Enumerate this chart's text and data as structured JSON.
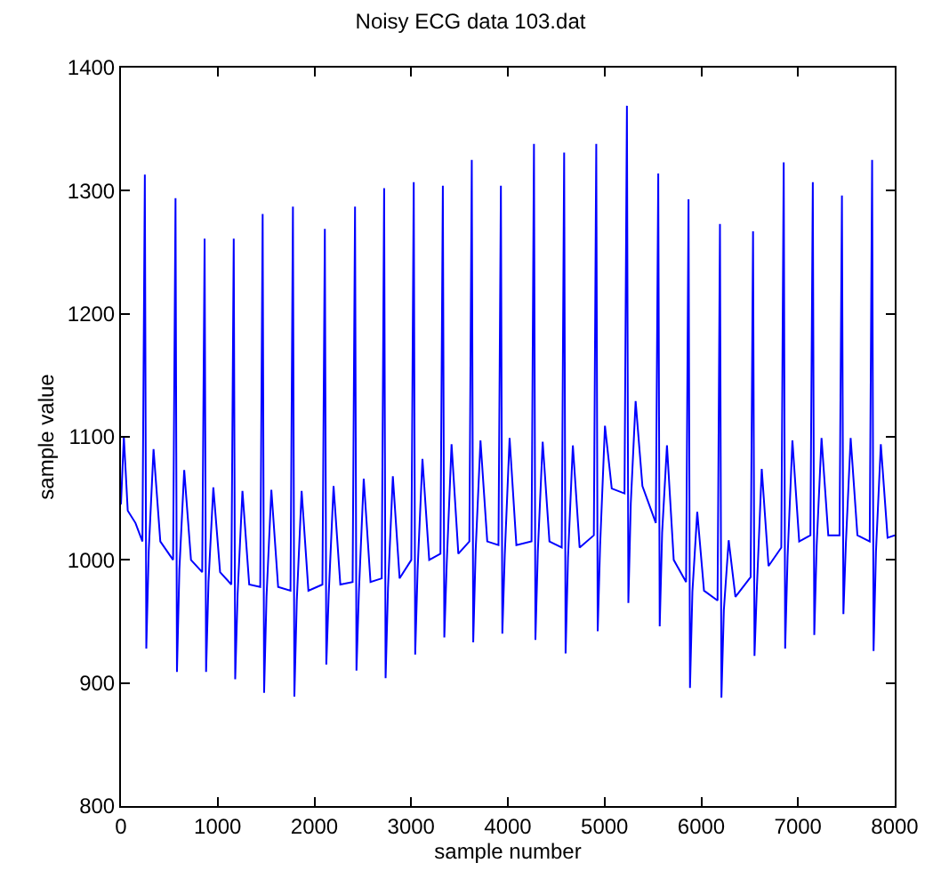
{
  "chart_data": {
    "type": "line",
    "title": "Noisy ECG data 103.dat",
    "xlabel": "sample number",
    "ylabel": "sample value",
    "xlim": [
      0,
      8000
    ],
    "xticks": [
      0,
      1000,
      2000,
      3000,
      4000,
      5000,
      6000,
      7000,
      8000
    ],
    "ylim": [
      800,
      1400
    ],
    "yticks": [
      800,
      900,
      1000,
      1100,
      1200,
      1300,
      1400
    ],
    "marker": "none",
    "line_style": "solid",
    "series": [
      {
        "color": "#0000ff",
        "x": [
          0,
          30,
          70,
          150,
          222,
          247,
          262,
          287,
          337,
          407,
          539,
          564,
          579,
          604,
          654,
          724,
          840,
          865,
          880,
          905,
          955,
          1025,
          1141,
          1166,
          1181,
          1206,
          1256,
          1326,
          1440,
          1465,
          1480,
          1505,
          1555,
          1625,
          1753,
          1778,
          1793,
          1818,
          1868,
          1938,
          2083,
          2108,
          2123,
          2148,
          2198,
          2268,
          2395,
          2420,
          2435,
          2460,
          2510,
          2580,
          2696,
          2721,
          2736,
          2761,
          2811,
          2881,
          3002,
          3027,
          3042,
          3067,
          3117,
          3187,
          3303,
          3328,
          3343,
          3368,
          3418,
          3488,
          3602,
          3627,
          3642,
          3667,
          3717,
          3787,
          3903,
          3928,
          3943,
          3968,
          4018,
          4088,
          4245,
          4270,
          4285,
          4310,
          4360,
          4430,
          4557,
          4582,
          4597,
          4622,
          4672,
          4742,
          4889,
          4914,
          4929,
          4954,
          5004,
          5074,
          5206,
          5231,
          5246,
          5271,
          5321,
          5391,
          5530,
          5555,
          5570,
          5595,
          5645,
          5715,
          5843,
          5868,
          5883,
          5908,
          5958,
          6028,
          6168,
          6193,
          6208,
          6233,
          6283,
          6353,
          6510,
          6535,
          6550,
          6575,
          6625,
          6695,
          6827,
          6852,
          6867,
          6892,
          6942,
          7012,
          7128,
          7153,
          7168,
          7193,
          7243,
          7313,
          7429,
          7454,
          7469,
          7494,
          7544,
          7614,
          7741,
          7766,
          7781,
          7806,
          7856,
          7926,
          8000
        ],
        "values": [
          1045,
          1100,
          1040,
          1030,
          1015,
          1313,
          928,
          1007,
          1090,
          1015,
          1000,
          1294,
          909,
          992,
          1073,
          1000,
          990,
          1261,
          909,
          982,
          1059,
          990,
          980,
          1261,
          903,
          972,
          1056,
          980,
          978,
          1281,
          892,
          970,
          1057,
          978,
          975,
          1287,
          889,
          967,
          1056,
          975,
          980,
          1269,
          915,
          972,
          1060,
          980,
          982,
          1287,
          910,
          974,
          1066,
          982,
          985,
          1302,
          904,
          977,
          1068,
          985,
          1000,
          1307,
          923,
          992,
          1082,
          1000,
          1005,
          1304,
          937,
          997,
          1094,
          1005,
          1015,
          1325,
          933,
          1007,
          1097,
          1015,
          1012,
          1304,
          940,
          1004,
          1099,
          1012,
          1015,
          1338,
          935,
          1007,
          1096,
          1015,
          1010,
          1331,
          924,
          1002,
          1093,
          1010,
          1020,
          1338,
          942,
          1012,
          1109,
          1058,
          1054,
          1369,
          965,
          1046,
          1129,
          1060,
          1030,
          1314,
          946,
          1022,
          1093,
          1000,
          982,
          1293,
          896,
          974,
          1039,
          975,
          967,
          1273,
          888,
          959,
          1016,
          970,
          986,
          1267,
          922,
          978,
          1074,
          995,
          1010,
          1323,
          928,
          1002,
          1097,
          1015,
          1020,
          1307,
          939,
          1012,
          1099,
          1020,
          1020,
          1296,
          956,
          1012,
          1099,
          1020,
          1015,
          1325,
          926,
          1007,
          1094,
          1018,
          1020
        ]
      }
    ]
  }
}
